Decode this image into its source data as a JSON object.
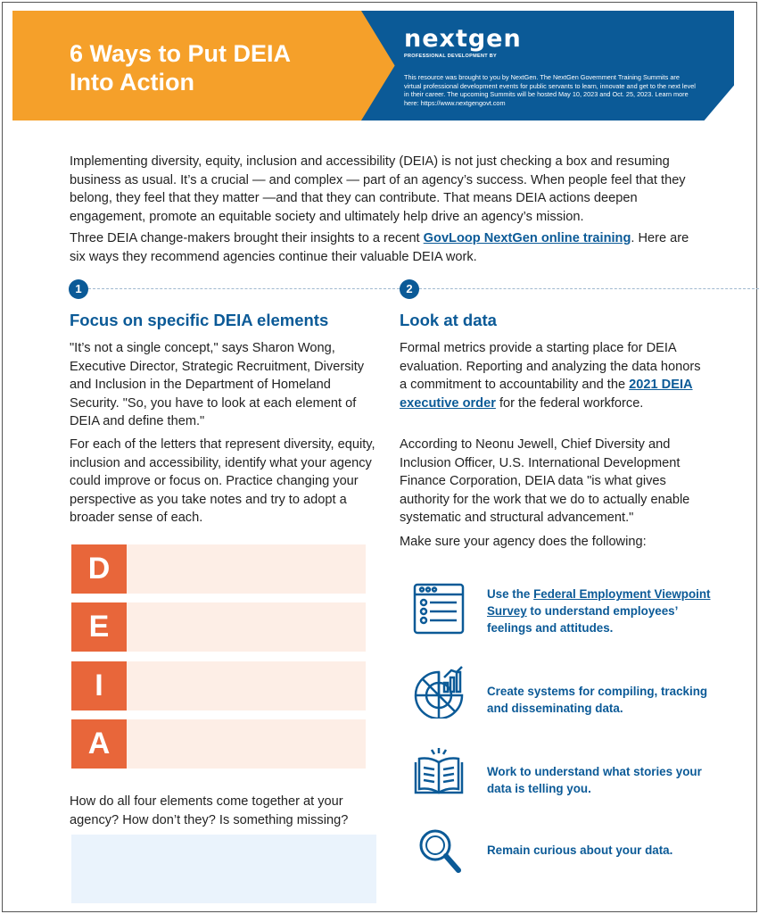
{
  "header": {
    "title_line1": "6 Ways to Put DEIA",
    "title_line2": "Into Action",
    "logo": "nextgen",
    "logo_sub": "PROFESSIONAL DEVELOPMENT BY",
    "about": "This resource was brought to you by NextGen. The NextGen Government Training Summits are virtual professional development events for public servants to learn, innovate and get to the next level in their career. The upcoming Summits will be hosted May 10, 2023 and Oct. 25, 2023. Learn more here: https://www.nextgengovt.com"
  },
  "intro": {
    "p1": "Implementing diversity, equity, inclusion and accessibility (DEIA) is not just checking a box and resuming business as usual. It’s a crucial — and complex — part of an agency’s success. When people feel that they belong, they feel that they matter —and that they can contribute. That means DEIA actions deepen engagement, promote an equitable society and ultimately help drive an agency’s mission.",
    "p2_before": "Three DEIA change-makers brought their insights to a recent ",
    "p2_link": "GovLoop NextGen online training",
    "p2_after": ". Here are six ways they recommend agencies continue their valuable DEIA work."
  },
  "section1": {
    "number": "1",
    "heading": "Focus on specific DEIA elements",
    "p1": "\"It’s not a single concept,\" says Sharon Wong, Executive Director, Strategic Recruitment, Diversity and Inclusion in the Department of Homeland Security. \"So, you have to look at each element of DEIA and define them.\"",
    "p2": "For each of the letters that represent diversity, equity, inclusion and accessibility, identify what your agency could improve or focus on. Practice changing your perspective as you take notes and try to adopt a broader sense of each.",
    "letters": [
      "D",
      "E",
      "I",
      "A"
    ],
    "question": "How do all four elements come together at your agency? How don’t they? Is something missing?"
  },
  "section2": {
    "number": "2",
    "heading": "Look at data",
    "p1_before": "Formal metrics provide a starting place for DEIA evaluation. Reporting and analyzing the data honors a commitment to accountability and the ",
    "p1_link": "2021 DEIA executive order",
    "p1_after": " for the federal workforce.",
    "p2": "According to Neonu Jewell, Chief Diversity and Inclusion Officer, U.S. International Development Finance Corporation, DEIA data \"is what gives authority for the work that we do to actually enable systematic and structural advancement.\"",
    "p3": "Make sure your agency does the following:",
    "items": [
      {
        "icon": "survey-checklist-icon",
        "before": "Use the ",
        "link": "Federal Employment Viewpoint Survey",
        "after": " to understand employees’ feelings and attitudes."
      },
      {
        "icon": "data-chart-icon",
        "text": "Create systems for compiling, tracking and disseminating data."
      },
      {
        "icon": "open-book-icon",
        "text": "Work to understand what stories your data is telling you."
      },
      {
        "icon": "magnifying-glass-icon",
        "text": "Remain curious about your data."
      }
    ]
  },
  "colors": {
    "orange": "#f5a02a",
    "blue": "#0b5a97",
    "letter": "#e8663a"
  }
}
